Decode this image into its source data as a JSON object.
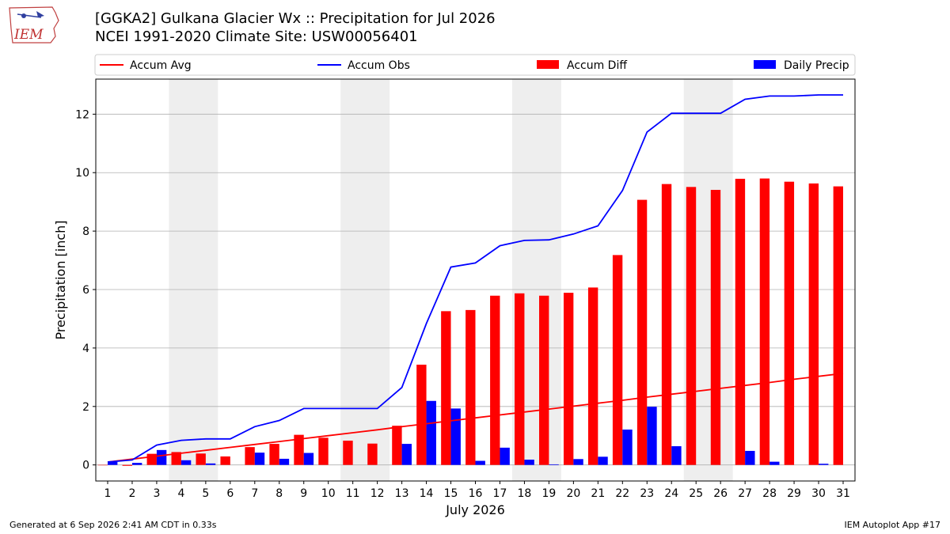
{
  "header": {
    "title": "[GGKA2] Gulkana Glacier Wx :: Precipitation for Jul 2026",
    "subtitle": "NCEI 1991-2020 Climate Site: USW00056401"
  },
  "logo": {
    "text": "IEM",
    "icon": "iem-iowa-logo"
  },
  "footer": {
    "left": "Generated at 6 Sep 2026 2:41 AM CDT in 0.33s",
    "right": "IEM Autoplot App #17"
  },
  "colors": {
    "accum_avg": "#ff0000",
    "accum_obs": "#0000ff",
    "accum_diff": "#ff0000",
    "daily_precip": "#0000ff",
    "weekend_shade": "#eeeeee",
    "grid": "#b0b0b0"
  },
  "chart_data": {
    "type": "bar",
    "xlabel": "July 2026",
    "ylabel": "Precipitation [inch]",
    "ylim": [
      -0.55,
      13.2
    ],
    "yticks": [
      0,
      2,
      4,
      6,
      8,
      10,
      12
    ],
    "grid": "horizontal",
    "legend_placement": "top",
    "weekend_shading": [
      [
        4,
        5
      ],
      [
        11,
        12
      ],
      [
        18,
        19
      ],
      [
        25,
        26
      ]
    ],
    "categories": [
      1,
      2,
      3,
      4,
      5,
      6,
      7,
      8,
      9,
      10,
      11,
      12,
      13,
      14,
      15,
      16,
      17,
      18,
      19,
      20,
      21,
      22,
      23,
      24,
      25,
      26,
      27,
      28,
      29,
      30,
      31
    ],
    "legend": [
      "Accum Avg",
      "Accum Obs",
      "Accum Diff",
      "Daily Precip"
    ],
    "series": [
      {
        "name": "Accum Avg",
        "kind": "line",
        "values": [
          0.1,
          0.2,
          0.3,
          0.4,
          0.5,
          0.6,
          0.7,
          0.8,
          0.9,
          1.0,
          1.1,
          1.2,
          1.31,
          1.41,
          1.51,
          1.61,
          1.71,
          1.81,
          1.91,
          2.01,
          2.11,
          2.21,
          2.32,
          2.42,
          2.52,
          2.62,
          2.72,
          2.82,
          2.93,
          3.03,
          3.13
        ]
      },
      {
        "name": "Accum Obs",
        "kind": "line",
        "values": [
          0.1,
          0.17,
          0.68,
          0.84,
          0.89,
          0.89,
          1.31,
          1.52,
          1.93,
          1.93,
          1.93,
          1.93,
          2.65,
          4.84,
          6.77,
          6.91,
          7.5,
          7.68,
          7.7,
          7.9,
          8.18,
          9.39,
          11.39,
          12.03,
          12.03,
          12.03,
          12.51,
          12.62,
          12.62,
          12.66,
          12.66
        ]
      },
      {
        "name": "Accum Diff",
        "kind": "bar",
        "values": [
          0.0,
          -0.03,
          0.38,
          0.44,
          0.39,
          0.29,
          0.61,
          0.72,
          1.03,
          0.93,
          0.83,
          0.73,
          1.34,
          3.43,
          5.26,
          5.3,
          5.79,
          5.87,
          5.79,
          5.89,
          6.07,
          7.18,
          9.07,
          9.61,
          9.51,
          9.41,
          9.79,
          9.8,
          9.69,
          9.63,
          9.53
        ]
      },
      {
        "name": "Daily Precip",
        "kind": "bar",
        "values": [
          0.1,
          0.07,
          0.51,
          0.16,
          0.05,
          0.0,
          0.42,
          0.21,
          0.41,
          0.0,
          0.0,
          0.0,
          0.72,
          2.19,
          1.93,
          0.14,
          0.59,
          0.18,
          0.02,
          0.2,
          0.28,
          1.21,
          1.99,
          0.64,
          0.0,
          0.0,
          0.48,
          0.11,
          0.0,
          0.04,
          0.0
        ]
      }
    ]
  }
}
